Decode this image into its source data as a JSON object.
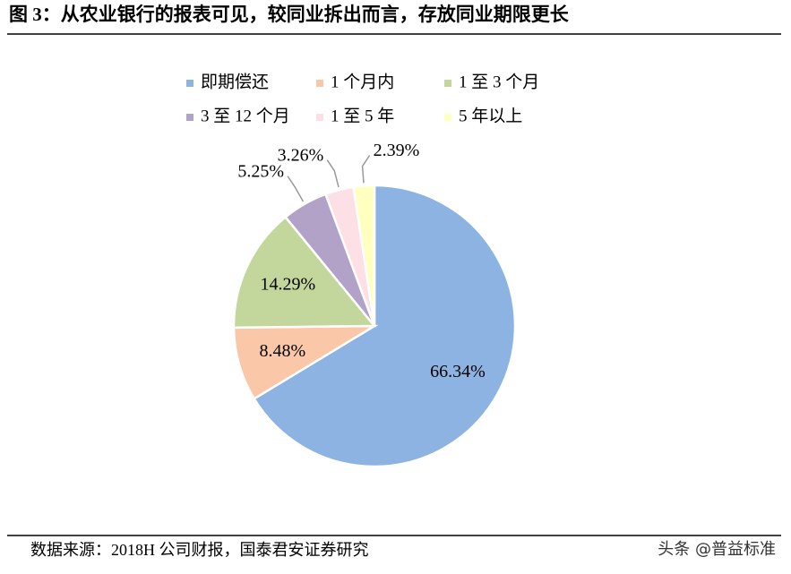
{
  "chart_data": {
    "type": "pie",
    "title": "图 3：从农业银行的报表可见，较同业拆出而言，存放同业期限更长",
    "categories": [
      "即期偿还",
      "1 个月内",
      "1 至 3 个月",
      "3 至 12 个月",
      "1 至 5 年",
      "5 年以上"
    ],
    "values": [
      66.34,
      8.48,
      14.29,
      5.25,
      3.26,
      2.39
    ],
    "value_labels": [
      "66.34%",
      "8.48%",
      "14.29%",
      "5.25%",
      "3.26%",
      "2.39%"
    ],
    "colors": [
      "#8db3e2",
      "#fac8a8",
      "#c3d69b",
      "#b3a2c7",
      "#fde0e6",
      "#ffffc0"
    ],
    "legend": "top",
    "source": "数据来源：2018H 公司财报，国泰君安证券研究",
    "watermark": "头条 @普益标准"
  }
}
